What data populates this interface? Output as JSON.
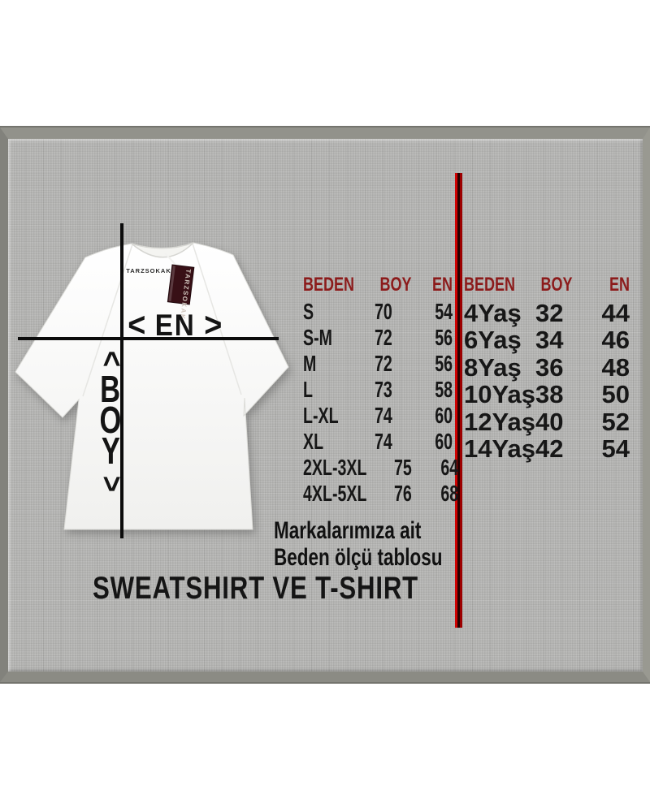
{
  "diagram": {
    "collar_brand": "TARZSOKAK",
    "tag_brand": "TARZSOKAK",
    "width_label": "EN",
    "width_arrow_left": "<",
    "width_arrow_right": ">",
    "length_label": "BOY",
    "length_arrow_top": "<",
    "length_arrow_bottom": ">"
  },
  "size_tables": [
    {
      "headers": [
        "BEDEN",
        "BOY",
        "EN"
      ],
      "rows": [
        [
          "S",
          "70",
          "54"
        ],
        [
          "S-M",
          "72",
          "56"
        ],
        [
          "M",
          "72",
          "56"
        ],
        [
          "L",
          "73",
          "58"
        ],
        [
          "L-XL",
          "74",
          "60"
        ],
        [
          "XL",
          "74",
          "60"
        ],
        [
          "2XL-3XL",
          "75",
          "64"
        ],
        [
          "4XL-5XL",
          "76",
          "68"
        ]
      ]
    },
    {
      "headers": [
        "BEDEN",
        "BOY",
        "EN"
      ],
      "rows": [
        [
          "4Yaş",
          "32",
          "44"
        ],
        [
          "6Yaş",
          "34",
          "46"
        ],
        [
          "8Yaş",
          "36",
          "48"
        ],
        [
          "10Yaş",
          "38",
          "50"
        ],
        [
          "12Yaş",
          "40",
          "52"
        ],
        [
          "14Yaş",
          "42",
          "54"
        ]
      ]
    }
  ],
  "caption": {
    "line1": "Markalarımıza ait",
    "line2": "Beden ölçü tablosu"
  },
  "title": "SWEATSHIRT VE T-SHIRT",
  "colors": {
    "header_red": "#8c1b1b",
    "divider_red": "#cf0202",
    "text_black": "#141414",
    "panel_gray": "#b4b4b2",
    "tag_maroon": "#381016",
    "shirt_white": "#fbfbfa"
  },
  "chart_data": [
    {
      "type": "table",
      "columns": [
        "BEDEN",
        "BOY",
        "EN"
      ],
      "rows": [
        [
          "S",
          70,
          54
        ],
        [
          "S-M",
          72,
          56
        ],
        [
          "M",
          72,
          56
        ],
        [
          "L",
          73,
          58
        ],
        [
          "L-XL",
          74,
          60
        ],
        [
          "XL",
          74,
          60
        ],
        [
          "2XL-3XL",
          75,
          64
        ],
        [
          "4XL-5XL",
          76,
          68
        ]
      ]
    },
    {
      "type": "table",
      "columns": [
        "BEDEN",
        "BOY",
        "EN"
      ],
      "rows": [
        [
          "4Yaş",
          32,
          44
        ],
        [
          "6Yaş",
          34,
          46
        ],
        [
          "8Yaş",
          36,
          48
        ],
        [
          "10Yaş",
          38,
          50
        ],
        [
          "12Yaş",
          40,
          52
        ],
        [
          "14Yaş",
          42,
          54
        ]
      ]
    }
  ]
}
